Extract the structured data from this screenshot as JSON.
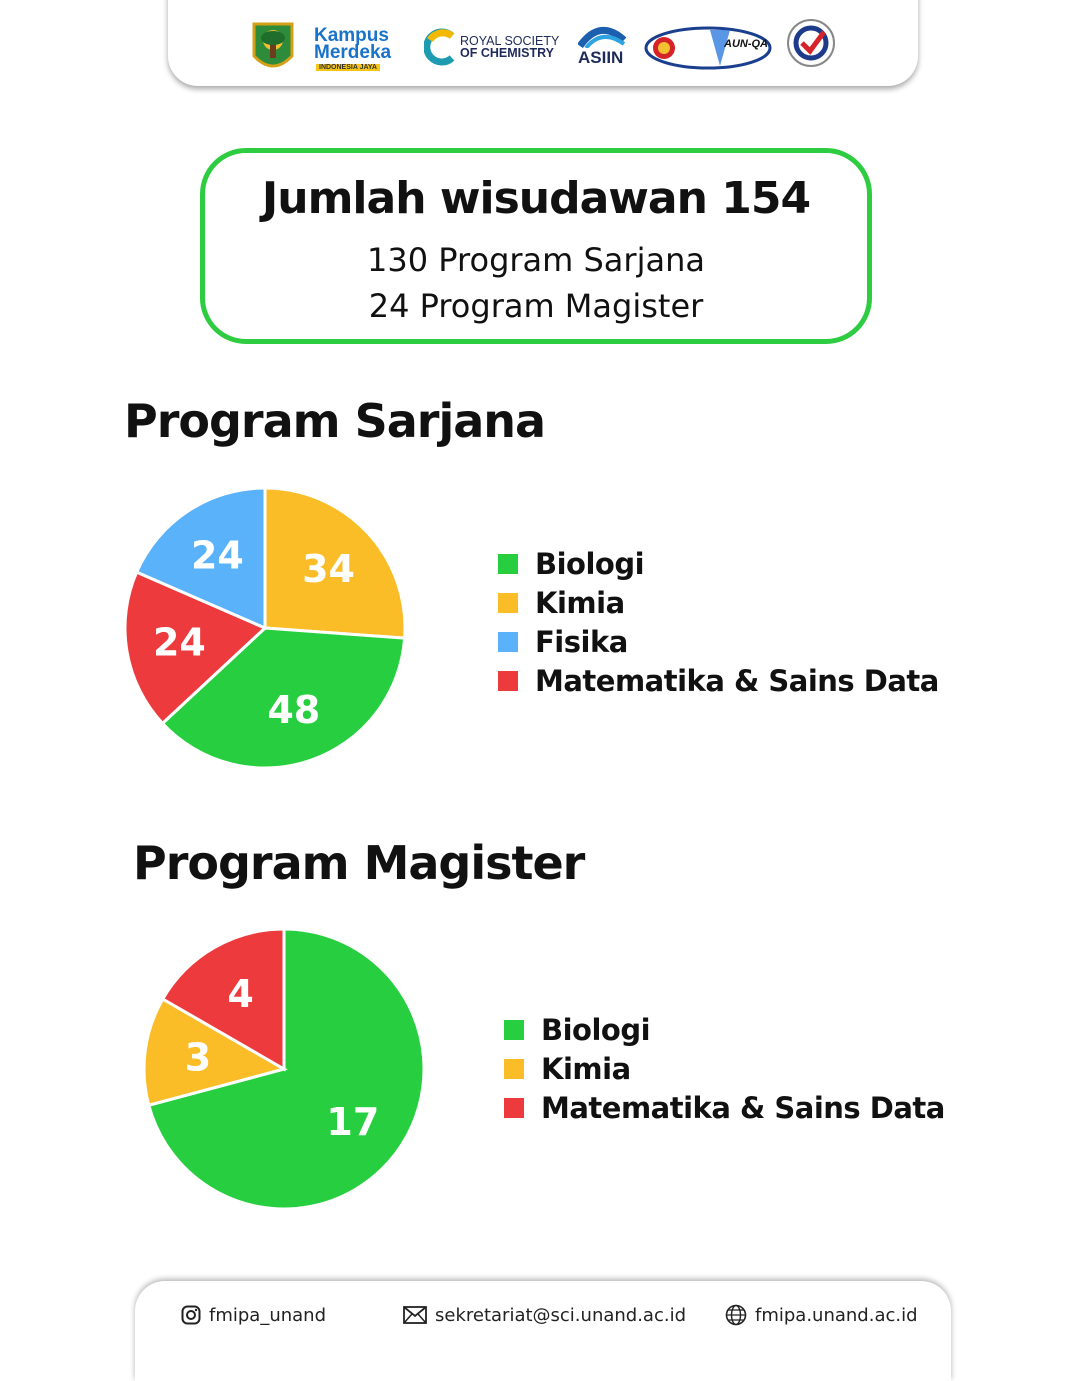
{
  "logos": {
    "kampus_merdeka_line1": "Kampus",
    "kampus_merdeka_line2": "Merdeka",
    "kampus_merdeka_tag": "INDONESIA JAYA",
    "rsc_line1": "ROYAL SOCIETY",
    "rsc_line2": "OF CHEMISTRY",
    "asiin": "ASIIN",
    "aunqa": "AUN-QA"
  },
  "summary": {
    "title": "Jumlah wisudawan 154",
    "line1": "130 Program Sarjana",
    "line2": "24 Program Magister"
  },
  "colors": {
    "green": "#27cf40",
    "yellow": "#fbbd27",
    "blue": "#5ab2fb",
    "red": "#ec3a3d",
    "border": "#2ecc40"
  },
  "chart_data": [
    {
      "type": "pie",
      "title": "Program Sarjana",
      "categories": [
        "Biologi",
        "Kimia",
        "Fisika",
        "Matematika & Sains Data"
      ],
      "values": [
        48,
        34,
        24,
        24
      ],
      "legend": [
        "Biologi",
        "Kimia",
        "Fisika",
        "Matematika & Sains Data"
      ]
    },
    {
      "type": "pie",
      "title": "Program Magister",
      "categories": [
        "Biologi",
        "Kimia",
        "Matematika & Sains Data"
      ],
      "values": [
        17,
        3,
        4
      ],
      "legend": [
        "Biologi",
        "Kimia",
        "Matematika & Sains Data"
      ]
    }
  ],
  "footer": {
    "instagram": "fmipa_unand",
    "email": "sekretariat@sci.unand.ac.id",
    "website": "fmipa.unand.ac.id"
  }
}
